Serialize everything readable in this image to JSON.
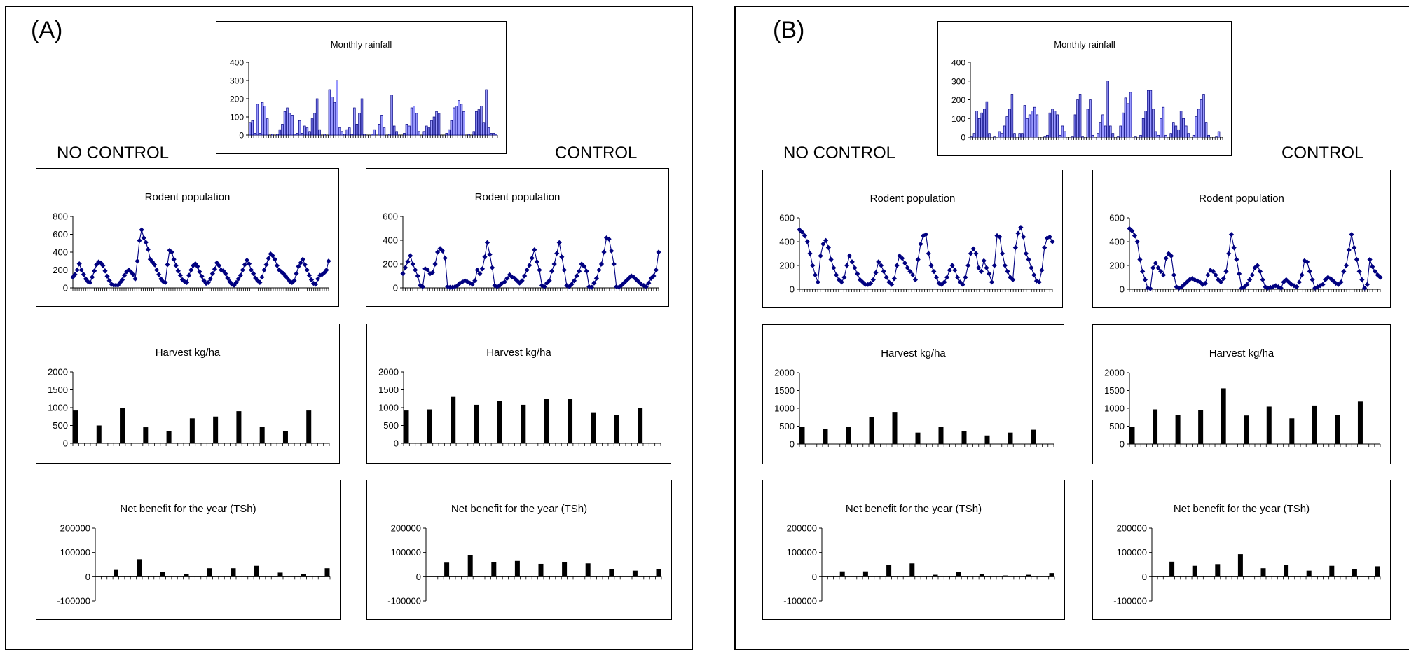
{
  "panels": [
    {
      "label": "(A)",
      "left_label": "NO CONTROL",
      "right_label": "CONTROL"
    },
    {
      "label": "(B)",
      "left_label": "NO CONTROL",
      "right_label": "CONTROL"
    }
  ],
  "colors": {
    "line": "#000080",
    "rain_fill": "#9999ff",
    "bars": "#000000",
    "axis": "#000000"
  },
  "chart_data": [
    {
      "id": "A-rain",
      "panel": "A",
      "type": "bar",
      "title": "Monthly rainfall",
      "ylim": [
        0,
        400
      ],
      "yticks": [
        0,
        100,
        200,
        300,
        400
      ],
      "values": [
        70,
        80,
        10,
        170,
        10,
        180,
        160,
        90,
        0,
        5,
        0,
        5,
        30,
        60,
        130,
        150,
        120,
        110,
        5,
        10,
        80,
        10,
        50,
        40,
        20,
        90,
        120,
        200,
        30,
        0,
        5,
        0,
        250,
        210,
        180,
        300,
        40,
        20,
        5,
        30,
        40,
        5,
        150,
        60,
        120,
        200,
        5,
        0,
        0,
        5,
        30,
        0,
        60,
        110,
        40,
        0,
        5,
        220,
        50,
        20,
        0,
        0,
        10,
        60,
        50,
        150,
        160,
        120,
        20,
        0,
        20,
        50,
        40,
        80,
        100,
        130,
        120,
        0,
        0,
        10,
        30,
        80,
        150,
        160,
        190,
        170,
        130,
        0,
        5,
        0,
        20,
        130,
        140,
        160,
        70,
        250,
        40,
        10,
        10,
        5
      ]
    },
    {
      "id": "A-rodent-nc",
      "panel": "A",
      "type": "line",
      "title": "Rodent population",
      "ylim": [
        0,
        800
      ],
      "yticks": [
        0,
        200,
        400,
        600,
        800
      ],
      "values": [
        120,
        150,
        200,
        270,
        200,
        150,
        100,
        70,
        60,
        120,
        190,
        260,
        290,
        280,
        250,
        190,
        130,
        80,
        40,
        30,
        30,
        30,
        60,
        90,
        140,
        180,
        200,
        180,
        150,
        100,
        300,
        530,
        650,
        560,
        510,
        430,
        320,
        290,
        260,
        200,
        150,
        100,
        70,
        60,
        260,
        420,
        400,
        320,
        250,
        190,
        140,
        90,
        70,
        60,
        140,
        200,
        250,
        270,
        240,
        180,
        130,
        80,
        50,
        60,
        100,
        160,
        210,
        280,
        250,
        200,
        190,
        160,
        110,
        70,
        40,
        30,
        60,
        100,
        140,
        200,
        260,
        310,
        270,
        200,
        160,
        110,
        80,
        60,
        120,
        200,
        260,
        330,
        380,
        360,
        320,
        250,
        200,
        180,
        160,
        130,
        100,
        70,
        60,
        80,
        160,
        240,
        280,
        320,
        260,
        200,
        140,
        90,
        50,
        40,
        100,
        140,
        150,
        170,
        200,
        300
      ]
    },
    {
      "id": "A-rodent-c",
      "panel": "A",
      "type": "line",
      "title": "Rodent population",
      "ylim": [
        0,
        600
      ],
      "yticks": [
        0,
        200,
        400,
        600
      ],
      "values": [
        120,
        170,
        220,
        270,
        200,
        150,
        100,
        20,
        10,
        160,
        150,
        120,
        130,
        200,
        300,
        330,
        310,
        250,
        10,
        5,
        5,
        10,
        20,
        40,
        50,
        60,
        50,
        40,
        30,
        60,
        150,
        120,
        160,
        260,
        380,
        280,
        170,
        20,
        10,
        20,
        40,
        50,
        80,
        110,
        90,
        80,
        60,
        40,
        60,
        100,
        150,
        190,
        250,
        320,
        220,
        150,
        20,
        10,
        40,
        60,
        140,
        200,
        290,
        380,
        260,
        150,
        20,
        10,
        30,
        60,
        100,
        140,
        200,
        180,
        140,
        10,
        5,
        40,
        80,
        150,
        200,
        300,
        420,
        410,
        310,
        200,
        10,
        5,
        20,
        40,
        60,
        80,
        100,
        90,
        70,
        50,
        30,
        20,
        10,
        40,
        80,
        100,
        150,
        300
      ]
    },
    {
      "id": "A-harvest-nc",
      "panel": "A",
      "type": "bar",
      "title": "Harvest kg/ha",
      "ylim": [
        0,
        2000
      ],
      "yticks": [
        0,
        500,
        1000,
        1500,
        2000
      ],
      "values": [
        920,
        500,
        1000,
        450,
        350,
        700,
        750,
        900,
        470,
        350,
        920
      ]
    },
    {
      "id": "A-harvest-c",
      "panel": "A",
      "type": "bar",
      "title": "Harvest kg/ha",
      "ylim": [
        0,
        2000
      ],
      "yticks": [
        0,
        500,
        1000,
        1500,
        2000
      ],
      "values": [
        920,
        950,
        1300,
        1080,
        1180,
        1080,
        1250,
        1250,
        870,
        800,
        1000
      ]
    },
    {
      "id": "A-net-nc",
      "panel": "A",
      "type": "bar",
      "title": "Net benefit for the year (TSh)",
      "ylim": [
        -100000,
        200000
      ],
      "yticks": [
        -100000,
        0,
        100000,
        200000
      ],
      "values": [
        28000,
        72000,
        20000,
        12000,
        35000,
        35000,
        45000,
        17000,
        10000,
        35000
      ]
    },
    {
      "id": "A-net-c",
      "panel": "A",
      "type": "bar",
      "title": "Net benefit for the year (TSh)",
      "ylim": [
        -100000,
        200000
      ],
      "yticks": [
        -100000,
        0,
        100000,
        200000
      ],
      "values": [
        58000,
        88000,
        60000,
        65000,
        53000,
        60000,
        55000,
        30000,
        25000,
        32000
      ]
    },
    {
      "id": "B-rain",
      "panel": "B",
      "type": "bar",
      "title": "Monthly rainfall",
      "ylim": [
        0,
        400
      ],
      "yticks": [
        0,
        100,
        200,
        300,
        400
      ],
      "values": [
        5,
        20,
        140,
        100,
        130,
        150,
        190,
        20,
        0,
        5,
        0,
        30,
        20,
        60,
        110,
        150,
        230,
        20,
        0,
        20,
        20,
        170,
        100,
        120,
        140,
        160,
        120,
        0,
        0,
        5,
        10,
        130,
        150,
        140,
        120,
        10,
        60,
        30,
        0,
        0,
        5,
        120,
        200,
        230,
        5,
        0,
        150,
        200,
        10,
        0,
        20,
        80,
        120,
        60,
        300,
        60,
        20,
        0,
        5,
        60,
        130,
        210,
        180,
        240,
        0,
        5,
        0,
        10,
        100,
        140,
        250,
        250,
        150,
        30,
        10,
        100,
        160,
        10,
        0,
        20,
        80,
        60,
        40,
        140,
        100,
        60,
        20,
        0,
        10,
        110,
        150,
        200,
        230,
        80,
        10,
        0,
        0,
        5,
        30,
        0
      ]
    },
    {
      "id": "B-rodent-nc",
      "panel": "B",
      "type": "line",
      "title": "Rodent population",
      "ylim": [
        0,
        600
      ],
      "yticks": [
        0,
        200,
        400,
        600
      ],
      "values": [
        500,
        480,
        450,
        400,
        300,
        200,
        120,
        60,
        280,
        380,
        410,
        350,
        250,
        180,
        120,
        80,
        60,
        100,
        200,
        280,
        230,
        180,
        130,
        80,
        60,
        40,
        40,
        50,
        80,
        140,
        230,
        200,
        150,
        100,
        60,
        40,
        90,
        200,
        280,
        260,
        220,
        180,
        150,
        120,
        80,
        250,
        380,
        450,
        460,
        300,
        200,
        150,
        100,
        50,
        40,
        60,
        100,
        160,
        200,
        160,
        100,
        60,
        40,
        100,
        200,
        300,
        340,
        300,
        180,
        150,
        240,
        180,
        130,
        60,
        200,
        450,
        440,
        300,
        200,
        150,
        100,
        80,
        350,
        470,
        520,
        440,
        300,
        250,
        180,
        120,
        70,
        60,
        160,
        350,
        430,
        440,
        400
      ]
    },
    {
      "id": "B-rodent-c",
      "panel": "B",
      "type": "line",
      "title": "Rodent population",
      "ylim": [
        0,
        600
      ],
      "yticks": [
        0,
        200,
        400,
        600
      ],
      "values": [
        510,
        490,
        450,
        400,
        250,
        150,
        80,
        10,
        5,
        180,
        220,
        180,
        150,
        120,
        260,
        300,
        280,
        120,
        20,
        10,
        20,
        40,
        60,
        80,
        90,
        80,
        70,
        60,
        40,
        50,
        120,
        160,
        150,
        120,
        80,
        60,
        90,
        150,
        300,
        460,
        350,
        250,
        130,
        10,
        20,
        40,
        80,
        120,
        180,
        200,
        150,
        80,
        20,
        10,
        15,
        20,
        30,
        20,
        10,
        60,
        80,
        60,
        40,
        30,
        20,
        60,
        120,
        240,
        230,
        150,
        80,
        10,
        20,
        30,
        40,
        80,
        100,
        90,
        70,
        50,
        40,
        60,
        150,
        200,
        330,
        460,
        350,
        250,
        150,
        80,
        10,
        40,
        250,
        190,
        150,
        120,
        100
      ]
    },
    {
      "id": "B-harvest-nc",
      "panel": "B",
      "type": "bar",
      "title": "Harvest kg/ha",
      "ylim": [
        0,
        2000
      ],
      "yticks": [
        0,
        500,
        1000,
        1500,
        2000
      ],
      "values": [
        480,
        430,
        480,
        760,
        900,
        320,
        480,
        370,
        240,
        320,
        400
      ]
    },
    {
      "id": "B-harvest-c",
      "panel": "B",
      "type": "bar",
      "title": "Harvest kg/ha",
      "ylim": [
        0,
        2000
      ],
      "yticks": [
        0,
        500,
        1000,
        1500,
        2000
      ],
      "values": [
        480,
        970,
        820,
        950,
        1560,
        800,
        1050,
        720,
        1080,
        820,
        1190
      ]
    },
    {
      "id": "B-net-nc",
      "panel": "B",
      "type": "bar",
      "title": "Net benefit for the year (TSh)",
      "ylim": [
        -100000,
        200000
      ],
      "yticks": [
        -100000,
        0,
        100000,
        200000
      ],
      "values": [
        22000,
        22000,
        48000,
        55000,
        8000,
        20000,
        12000,
        5000,
        8000,
        15000
      ]
    },
    {
      "id": "B-net-c",
      "panel": "B",
      "type": "bar",
      "title": "Net benefit for the year (TSh)",
      "ylim": [
        -100000,
        200000
      ],
      "yticks": [
        -100000,
        0,
        100000,
        200000
      ],
      "values": [
        62000,
        45000,
        52000,
        93000,
        35000,
        48000,
        25000,
        45000,
        30000,
        43000
      ]
    }
  ]
}
